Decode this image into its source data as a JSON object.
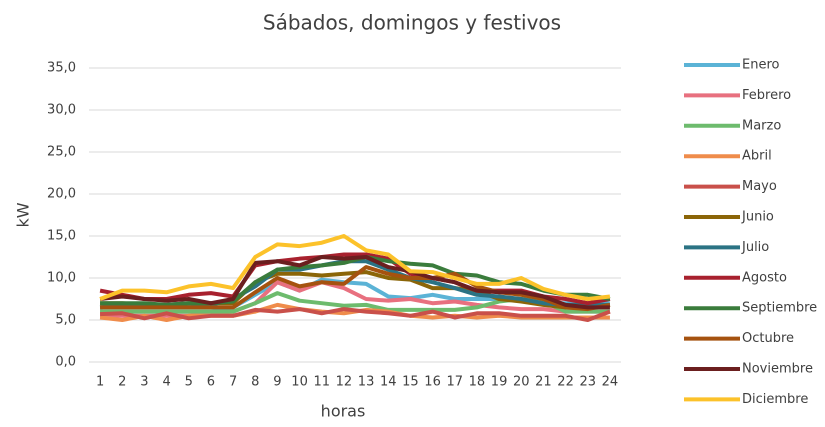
{
  "chart_data": {
    "type": "line",
    "title": "Sábados, domingos y festivos",
    "x_label": "horas",
    "y_label": "kW",
    "categories": [
      "1",
      "2",
      "3",
      "4",
      "5",
      "6",
      "7",
      "8",
      "9",
      "10",
      "11",
      "12",
      "13",
      "14",
      "15",
      "16",
      "17",
      "18",
      "19",
      "20",
      "21",
      "22",
      "23",
      "24"
    ],
    "ylim": [
      0,
      35
    ],
    "yticks": [
      {
        "value": 0,
        "label": "0,0"
      },
      {
        "value": 5,
        "label": "5,0"
      },
      {
        "value": 10,
        "label": "10,0"
      },
      {
        "value": 15,
        "label": "15,0"
      },
      {
        "value": 20,
        "label": "20,0"
      },
      {
        "value": 25,
        "label": "25,0"
      },
      {
        "value": 30,
        "label": "30,0"
      },
      {
        "value": 35,
        "label": "35,0"
      }
    ],
    "grid": true,
    "legend": "right",
    "series": [
      {
        "name": "Enero",
        "color": "#5bb3d6",
        "values": [
          6,
          6,
          6,
          6,
          6,
          6,
          6.5,
          8,
          9.5,
          8.5,
          9.8,
          9.5,
          9.3,
          7.8,
          7.6,
          8,
          7.5,
          7.5,
          7.5,
          7.5,
          7,
          7,
          6.8,
          7
        ]
      },
      {
        "name": "Febrero",
        "color": "#e8707f",
        "values": [
          5.5,
          5.5,
          5.5,
          5.5,
          5.5,
          5.8,
          6,
          7,
          9.5,
          8.5,
          9.5,
          8.8,
          7.5,
          7.3,
          7.5,
          7,
          7.2,
          6.8,
          6.5,
          6.3,
          6.3,
          6,
          6,
          6
        ]
      },
      {
        "name": "Marzo",
        "color": "#6dbb6d",
        "values": [
          6,
          6,
          6,
          6,
          6,
          6,
          6,
          7,
          8.2,
          7.3,
          7,
          6.7,
          6.8,
          6.2,
          6.2,
          6.2,
          6.2,
          6.5,
          7.2,
          7.5,
          7.2,
          6,
          6,
          6
        ]
      },
      {
        "name": "Abril",
        "color": "#ef8c4b",
        "values": [
          5.3,
          5,
          5.5,
          5,
          5.5,
          5.5,
          5.5,
          6,
          6.8,
          6.3,
          6,
          5.8,
          6.2,
          6,
          5.5,
          5.3,
          5.5,
          5.3,
          5.5,
          5.3,
          5.3,
          5.3,
          5.3,
          5.3
        ]
      },
      {
        "name": "Mayo",
        "color": "#c9504a",
        "values": [
          5.7,
          5.8,
          5.2,
          5.8,
          5.2,
          5.5,
          5.5,
          6.2,
          6,
          6.3,
          5.8,
          6.3,
          6,
          5.8,
          5.5,
          6,
          5.3,
          5.8,
          5.8,
          5.5,
          5.5,
          5.5,
          5,
          6
        ]
      },
      {
        "name": "Junio",
        "color": "#8b6508",
        "values": [
          7,
          7,
          6.8,
          6.8,
          7,
          7,
          7,
          9.5,
          10.5,
          10.5,
          10.3,
          10.5,
          10.7,
          10,
          9.8,
          8.8,
          8.8,
          8.5,
          7.5,
          7.2,
          6.8,
          6.5,
          6.5,
          6.8
        ]
      },
      {
        "name": "Julio",
        "color": "#2b7384",
        "values": [
          6.5,
          6.8,
          6.8,
          6.8,
          7,
          6.8,
          7.5,
          9,
          11,
          11,
          11.5,
          12,
          12,
          11,
          10,
          9.5,
          8.8,
          8,
          7.8,
          7.5,
          7,
          6.8,
          6.8,
          6.8
        ]
      },
      {
        "name": "Agosto",
        "color": "#a8212e",
        "values": [
          8.5,
          8,
          7.5,
          7.5,
          8,
          8.2,
          7.8,
          11.5,
          12,
          12.3,
          12.5,
          12.8,
          12.8,
          12.3,
          10.5,
          10,
          9.5,
          8.5,
          8.5,
          8.5,
          7.8,
          7.5,
          7,
          7.5
        ]
      },
      {
        "name": "Septiembre",
        "color": "#3a7c3c",
        "values": [
          7,
          7,
          7,
          6.8,
          7,
          7,
          7.2,
          9.5,
          11,
          11.3,
          11.5,
          11.8,
          12.5,
          12,
          11.7,
          11.5,
          10.5,
          10.3,
          9.5,
          9.3,
          8.5,
          8,
          8,
          7.5
        ]
      },
      {
        "name": "Octubre",
        "color": "#a5520f",
        "values": [
          6.5,
          6.5,
          6.5,
          6.5,
          6.5,
          6.5,
          6.5,
          8.3,
          10,
          9,
          9.5,
          9.3,
          11.3,
          10.5,
          10,
          10,
          10.5,
          9,
          8.3,
          8,
          7.5,
          6.5,
          6.3,
          6.8
        ]
      },
      {
        "name": "Noviembre",
        "color": "#6b1f1f",
        "values": [
          7.5,
          7.8,
          7.5,
          7.3,
          7.5,
          7,
          7.5,
          11.8,
          12,
          11.5,
          12.5,
          12.3,
          12.5,
          11.3,
          10.8,
          10,
          9.5,
          8.5,
          8.3,
          8.3,
          7.8,
          6.8,
          6.5,
          6.5
        ]
      },
      {
        "name": "Diciembre",
        "color": "#fcc22a",
        "values": [
          7.5,
          8.5,
          8.5,
          8.3,
          9,
          9.3,
          8.8,
          12.5,
          14,
          13.8,
          14.2,
          15,
          13.3,
          12.8,
          10.8,
          10.7,
          10,
          9.3,
          9.3,
          10,
          8.7,
          8,
          7.5,
          7.8
        ]
      }
    ]
  }
}
